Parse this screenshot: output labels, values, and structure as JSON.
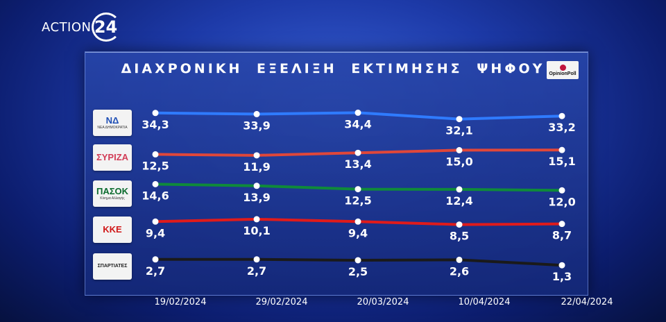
{
  "brand": {
    "text": "ACTION",
    "number": "24"
  },
  "poll_logo_text": "OpinionPoll",
  "chart_data": {
    "type": "line",
    "title": "ΔΙΑΧΡΟΝΙΚΗ ΕΞΕΛΙΞΗ ΕΚΤΙΜΗΣΗΣ ΨΗΦΟΥ",
    "x": [
      "19/02/2024",
      "29/02/2024",
      "20/03/2024",
      "10/04/2024",
      "22/04/2024"
    ],
    "series": [
      {
        "name": "ΝΔ",
        "logo_text": "ΝΔ",
        "logo_sub": "ΝΕΑ ΔΗΜΟΚΡΑΤΙΑ",
        "color": "#2f7bff",
        "logo_color": "#1f4fb5",
        "values": [
          34.3,
          33.9,
          34.4,
          32.1,
          33.2
        ],
        "labels": [
          "34,3",
          "33,9",
          "34,4",
          "32,1",
          "33,2"
        ]
      },
      {
        "name": "ΣΥΡΙΖΑ",
        "logo_text": "ΣΥΡΙΖΑ",
        "logo_sub": "",
        "color": "#e0473a",
        "logo_color": "#d23c56",
        "values": [
          12.5,
          11.9,
          13.4,
          15.0,
          15.1
        ],
        "labels": [
          "12,5",
          "11,9",
          "13,4",
          "15,0",
          "15,1"
        ]
      },
      {
        "name": "ΠΑΣΟΚ",
        "logo_text": "ΠΑΣΟΚ",
        "logo_sub": "Κίνημα Αλλαγής",
        "color": "#0f8a3a",
        "logo_color": "#0b6b2d",
        "values": [
          14.6,
          13.9,
          12.5,
          12.4,
          12.0
        ],
        "labels": [
          "14,6",
          "13,9",
          "12,5",
          "12,4",
          "12,0"
        ]
      },
      {
        "name": "ΚΚΕ",
        "logo_text": "ΚΚΕ",
        "logo_sub": "",
        "color": "#e01b1b",
        "logo_color": "#d11717",
        "values": [
          9.4,
          10.1,
          9.4,
          8.5,
          8.7
        ],
        "labels": [
          "9,4",
          "10,1",
          "9,4",
          "8,5",
          "8,7"
        ]
      },
      {
        "name": "ΣΠΑΡΤΙΑΤΕΣ",
        "logo_text": "ΣΠΑΡΤΙΑΤΕΣ",
        "logo_sub": "",
        "color": "#1a1a1a",
        "logo_color": "#c24a1c",
        "values": [
          2.7,
          2.7,
          2.5,
          2.6,
          1.3
        ],
        "labels": [
          "2,7",
          "2,7",
          "2,5",
          "2,6",
          "1,3"
        ]
      }
    ]
  }
}
